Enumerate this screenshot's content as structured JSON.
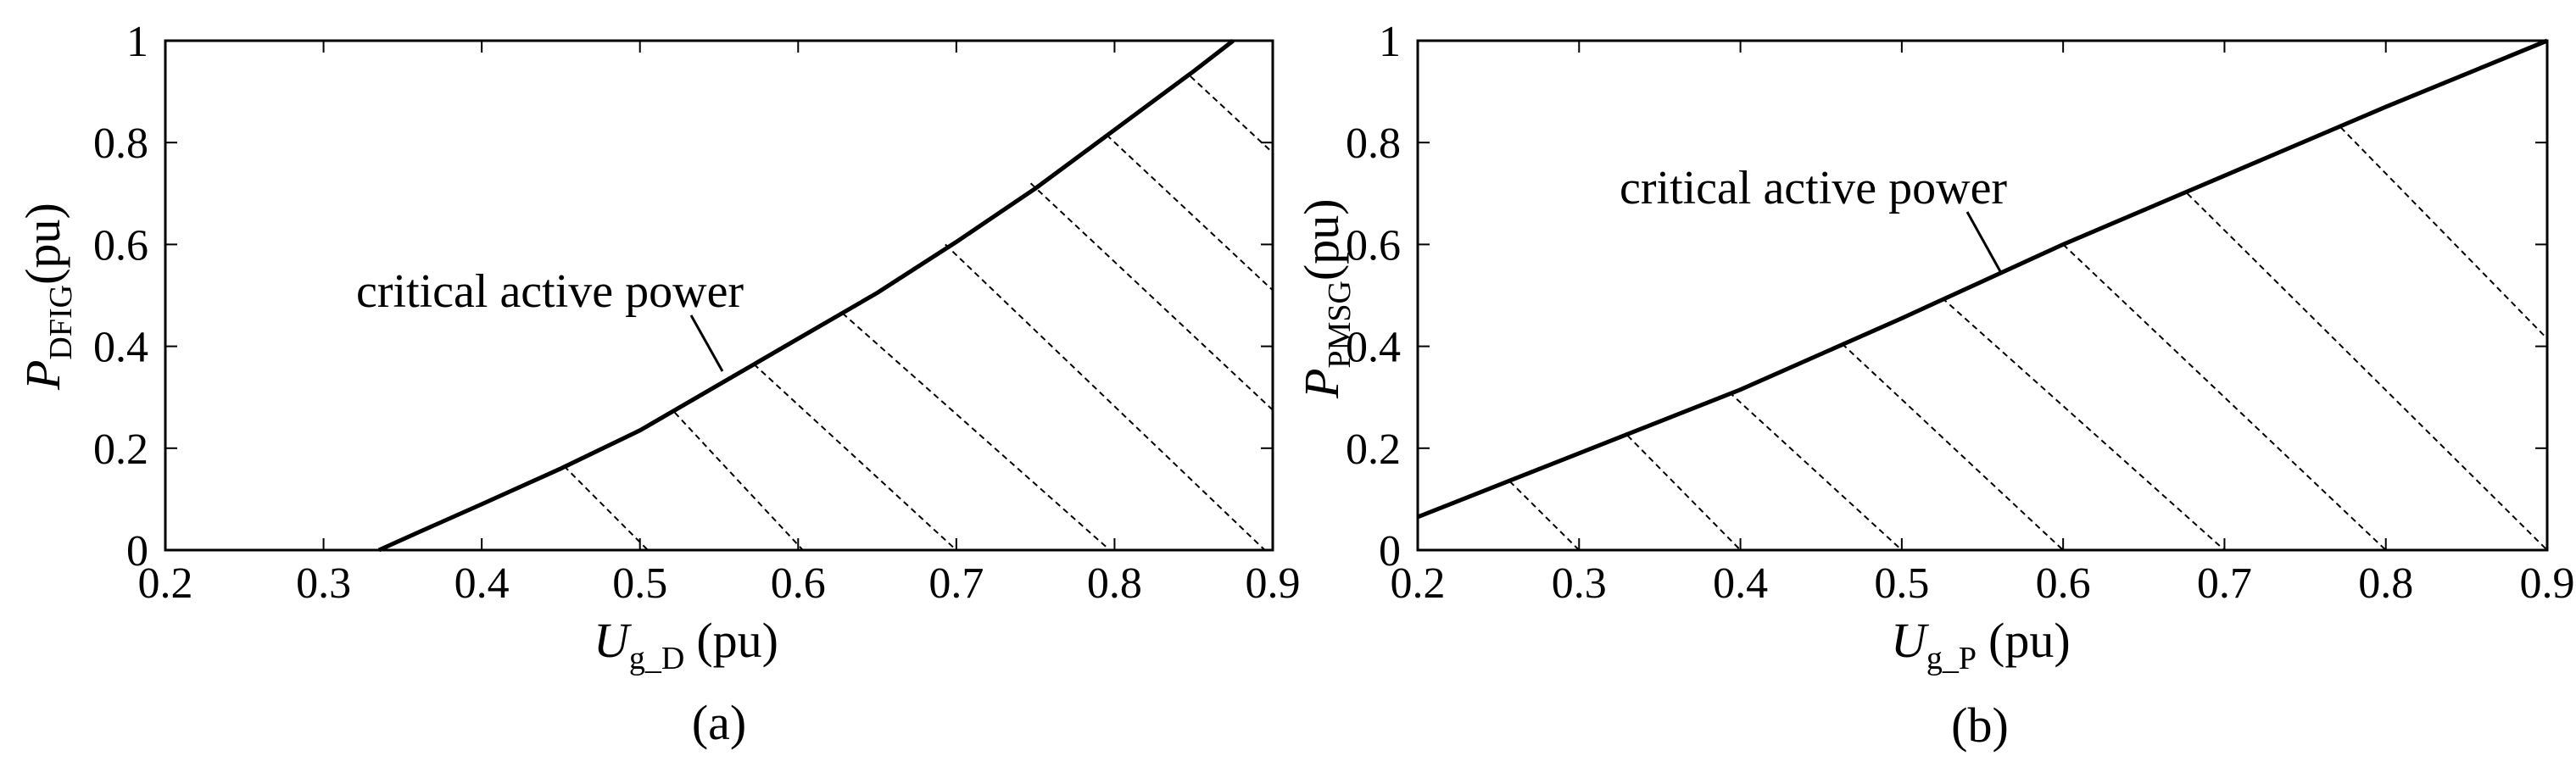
{
  "chart_data": [
    {
      "id": "a",
      "type": "line",
      "caption": "(a)",
      "xlabel": {
        "symbol": "U",
        "subscript": "g_D",
        "unit": "(pu)"
      },
      "ylabel": {
        "symbol": "P",
        "subscript": "DFIG",
        "unit": "(pu)"
      },
      "xlim": [
        0.2,
        0.9
      ],
      "ylim": [
        0,
        1
      ],
      "xticks": [
        "0.2",
        "0.3",
        "0.4",
        "0.5",
        "0.6",
        "0.7",
        "0.8",
        "0.9"
      ],
      "yticks": [
        "0",
        "0.2",
        "0.4",
        "0.6",
        "0.8",
        "1"
      ],
      "grid": false,
      "annotation": "critical active power",
      "series": [
        {
          "style": "solid",
          "x": [
            0.335,
            0.36,
            0.4,
            0.45,
            0.5,
            0.55,
            0.6,
            0.65,
            0.7,
            0.75,
            0.8,
            0.85,
            0.875
          ],
          "y": [
            0.0,
            0.035,
            0.09,
            0.16,
            0.235,
            0.325,
            0.415,
            0.505,
            0.605,
            0.71,
            0.825,
            0.94,
            1.0
          ]
        }
      ],
      "hatch_region": "right of curve",
      "hatch_lines": [
        {
          "x": [
            0.452,
            0.505
          ],
          "y": [
            0.165,
            0.0
          ]
        },
        {
          "x": [
            0.522,
            0.603
          ],
          "y": [
            0.27,
            0.0
          ]
        },
        {
          "x": [
            0.572,
            0.7
          ],
          "y": [
            0.365,
            0.0
          ]
        },
        {
          "x": [
            0.628,
            0.797
          ],
          "y": [
            0.465,
            0.0
          ]
        },
        {
          "x": [
            0.693,
            0.895
          ],
          "y": [
            0.6,
            0.0
          ]
        },
        {
          "x": [
            0.747,
            0.9
          ],
          "y": [
            0.72,
            0.275
          ]
        },
        {
          "x": [
            0.795,
            0.9
          ],
          "y": [
            0.815,
            0.51
          ]
        },
        {
          "x": [
            0.848,
            0.9
          ],
          "y": [
            0.93,
            0.78
          ]
        }
      ]
    },
    {
      "id": "b",
      "type": "line",
      "caption": "(b)",
      "xlabel": {
        "symbol": "U",
        "subscript": "g_P",
        "unit": "(pu)"
      },
      "ylabel": {
        "symbol": "P",
        "subscript": "PMSG",
        "unit": "(pu)"
      },
      "xlim": [
        0.2,
        0.9
      ],
      "ylim": [
        0,
        1
      ],
      "xticks": [
        "0.2",
        "0.3",
        "0.4",
        "0.5",
        "0.6",
        "0.7",
        "0.8",
        "0.9"
      ],
      "yticks": [
        "0",
        "0.2",
        "0.4",
        "0.6",
        "0.8",
        "1"
      ],
      "grid": false,
      "annotation": "critical active power",
      "series": [
        {
          "style": "solid",
          "x": [
            0.2,
            0.3,
            0.4,
            0.5,
            0.6,
            0.7,
            0.8,
            0.9
          ],
          "y": [
            0.065,
            0.19,
            0.315,
            0.455,
            0.6,
            0.735,
            0.87,
            1.0
          ]
        }
      ],
      "hatch_region": "below curve",
      "hatch_lines": [
        {
          "x": [
            0.257,
            0.3
          ],
          "y": [
            0.135,
            0.0
          ]
        },
        {
          "x": [
            0.33,
            0.4
          ],
          "y": [
            0.225,
            0.0
          ]
        },
        {
          "x": [
            0.393,
            0.5
          ],
          "y": [
            0.31,
            0.0
          ]
        },
        {
          "x": [
            0.463,
            0.6
          ],
          "y": [
            0.405,
            0.0
          ]
        },
        {
          "x": [
            0.525,
            0.7
          ],
          "y": [
            0.495,
            0.0
          ]
        },
        {
          "x": [
            0.6,
            0.8
          ],
          "y": [
            0.6,
            0.0
          ]
        },
        {
          "x": [
            0.677,
            0.9
          ],
          "y": [
            0.7,
            0.0
          ]
        },
        {
          "x": [
            0.772,
            0.9
          ],
          "y": [
            0.83,
            0.415
          ]
        }
      ]
    }
  ]
}
